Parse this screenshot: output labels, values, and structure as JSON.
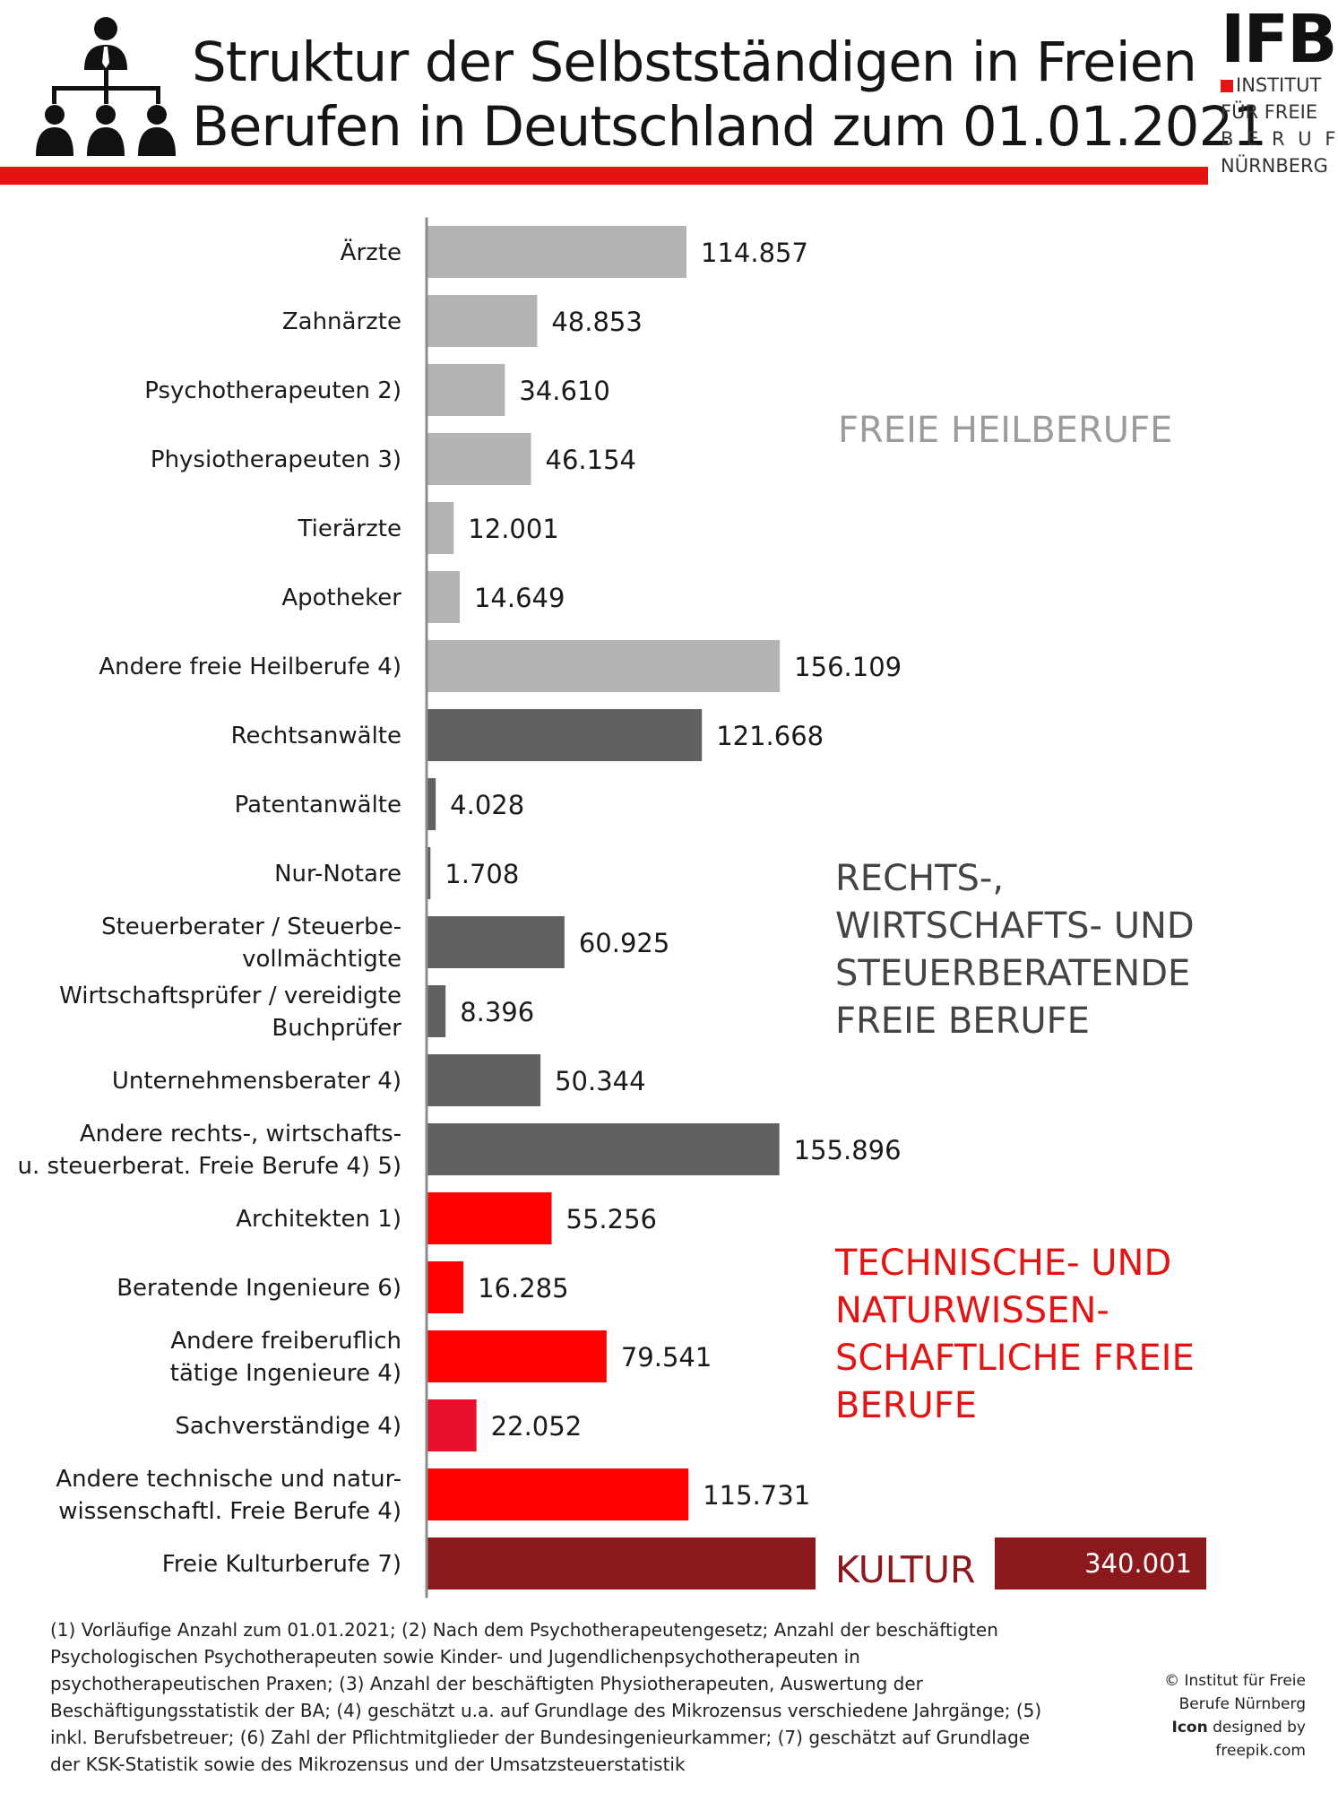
{
  "header": {
    "title_line1": "Struktur der Selbstständigen in Freien",
    "title_line2": "Berufen in Deutschland zum 01.01.2021"
  },
  "logo": {
    "mark": "IFB",
    "line1": "INSTITUT",
    "line2": "FÜR FREIE",
    "line3": "B E R U F E",
    "line4": "NÜRNBERG"
  },
  "icons": {
    "header": "organization-hierarchy-icon"
  },
  "colors": {
    "heil": "#b4b4b4",
    "recht": "#616161",
    "tech": "#ff0000",
    "sach": "#e8102a",
    "kultur": "#8a181c",
    "rule": "#e31414"
  },
  "chart_data": {
    "type": "bar",
    "orientation": "horizontal",
    "xlim": [
      0,
      160000
    ],
    "grid": false,
    "legend": "none",
    "categories": [
      "Ärzte",
      "Zahnärzte",
      "Psychotherapeuten 2)",
      "Physiotherapeuten 3)",
      "Tierärzte",
      "Apotheker",
      "Andere freie Heilberufe 4)",
      "Rechtsanwälte",
      "Patentanwälte",
      "Nur-Notare",
      "Steuerberater / Steuerbe-\nvollmächtigte",
      "Wirtschaftsprüfer / vereidigte\nBuchprüfer",
      "Unternehmensberater 4)",
      "Andere rechts-, wirtschafts-\nu. steuerberat. Freie Berufe 4) 5)",
      "Architekten 1)",
      "Beratende Ingenieure 6)",
      "Andere freiberuflich\ntätige Ingenieure 4)",
      "Sachverständige 4)",
      "Andere technische und natur-\nwissenschaftl. Freie Berufe 4)",
      "Freie Kulturberufe 7)"
    ],
    "values": [
      114857,
      48853,
      34610,
      46154,
      12001,
      14649,
      156109,
      121668,
      4028,
      1708,
      60925,
      8396,
      50344,
      155896,
      55256,
      16285,
      79541,
      22052,
      115731,
      340001
    ],
    "value_labels": [
      "114.857",
      "48.853",
      "34.610",
      "46.154",
      "12.001",
      "14.649",
      "156.109",
      "121.668",
      "4.028",
      "1.708",
      "60.925",
      "8.396",
      "50.344",
      "155.896",
      "55.256",
      "16.285",
      "79.541",
      "22.052",
      "115.731",
      "340.001"
    ],
    "groups": [
      "heil",
      "heil",
      "heil",
      "heil",
      "heil",
      "heil",
      "heil",
      "recht",
      "recht",
      "recht",
      "recht",
      "recht",
      "recht",
      "recht",
      "tech",
      "tech",
      "tech",
      "sach",
      "tech",
      "kultur"
    ],
    "group_labels": [
      {
        "group": "heil",
        "lines": [
          "FREIE HEILBERUFE"
        ]
      },
      {
        "group": "recht",
        "lines": [
          "RECHTS-,",
          "WIRTSCHAFTS-  UND",
          "STEUERBERATENDE",
          "FREIE BERUFE"
        ]
      },
      {
        "group": "tech",
        "lines": [
          "TECHNISCHE- UND",
          "NATURWISSEN-",
          "SCHAFTLICHE FREIE",
          "BERUFE"
        ]
      },
      {
        "group": "kultur",
        "lines": [
          "KULTUR"
        ]
      }
    ],
    "broken_bar_index": 19
  },
  "footnotes": [
    "(1) Vorläufige Anzahl zum 01.01.2021; (2) Nach dem Psychotherapeutengesetz; Anzahl der  beschäftigten",
    "Psychologischen Psychotherapeuten sowie Kinder- und Jugendlichenpsychotherapeuten in",
    "psychotherapeutischen Praxen; (3) Anzahl der beschäftigten Physiotherapeuten, Auswertung der",
    "Beschäftigungsstatistik der BA; (4) geschätzt u.a. auf Grundlage des Mikrozensus verschiedene Jahrgänge; (5)",
    "inkl. Berufsbetreuer; (6) Zahl der Pflichtmitglieder der Bundesingenieurkammer; (7) geschätzt auf Grundlage",
    "der KSK-Statistik sowie des Mikrozensus und der Umsatzsteuerstatistik"
  ],
  "credits": {
    "line1": "© Institut für Freie",
    "line2": "Berufe Nürnberg",
    "icon_word": "Icon",
    "line3_rest": " designed by",
    "line4": "freepik.com"
  }
}
